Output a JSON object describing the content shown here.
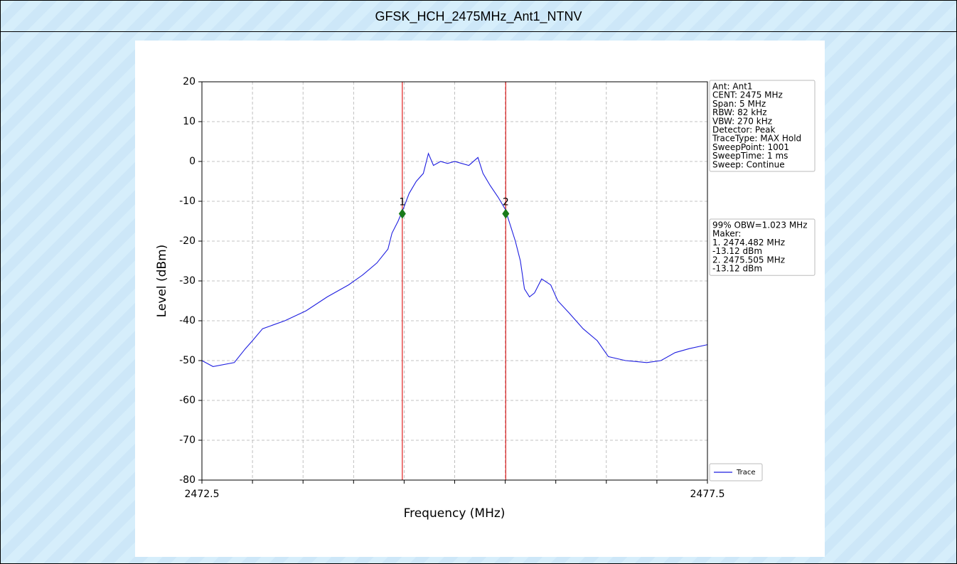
{
  "chart_data": {
    "type": "line",
    "title": "GFSK_HCH_2475MHz_Ant1_NTNV",
    "xlabel": "Frequency (MHz)",
    "ylabel": "Level (dBm)",
    "xlim": [
      2472.5,
      2477.5
    ],
    "ylim": [
      -80,
      20
    ],
    "xticks": [
      2472.5,
      2477.5
    ],
    "xminor_ticks": [
      2473,
      2473.5,
      2474,
      2474.5,
      2475,
      2475.5,
      2476,
      2476.5,
      2477
    ],
    "yticks": [
      -80,
      -70,
      -60,
      -50,
      -40,
      -30,
      -20,
      -10,
      0,
      10,
      20
    ],
    "grid": true,
    "series": [
      {
        "name": "Trace",
        "color": "#1f1fe0",
        "x": [
          2472.5,
          2472.61,
          2472.82,
          2472.93,
          2473.0,
          2473.1,
          2473.32,
          2473.53,
          2473.74,
          2473.95,
          2474.09,
          2474.23,
          2474.34,
          2474.38,
          2474.44,
          2474.49,
          2474.55,
          2474.62,
          2474.69,
          2474.74,
          2474.79,
          2474.86,
          2474.93,
          2475.0,
          2475.07,
          2475.14,
          2475.23,
          2475.28,
          2475.35,
          2475.43,
          2475.5,
          2475.55,
          2475.6,
          2475.65,
          2475.69,
          2475.74,
          2475.79,
          2475.86,
          2475.95,
          2476.02,
          2476.13,
          2476.27,
          2476.41,
          2476.52,
          2476.69,
          2476.9,
          2477.04,
          2477.18,
          2477.32,
          2477.5
        ],
        "values": [
          -50,
          -51.5,
          -50.5,
          -47,
          -45,
          -42,
          -40,
          -37.5,
          -34,
          -31,
          -28.5,
          -25.5,
          -22,
          -18,
          -15,
          -12,
          -8,
          -5,
          -3,
          2,
          -1,
          0,
          -0.5,
          0,
          -0.5,
          -1,
          1,
          -3,
          -6,
          -9,
          -12,
          -16,
          -20,
          -25,
          -32,
          -34,
          -33,
          -29.5,
          -31,
          -35,
          -38,
          -42,
          -45,
          -49,
          -50,
          -50.5,
          -50,
          -48,
          -47,
          -46
        ]
      }
    ],
    "markers": [
      {
        "label": "1",
        "x": 2474.482,
        "value": -13.12,
        "color": "#1a7a1a"
      },
      {
        "label": "2",
        "x": 2475.505,
        "value": -13.12,
        "color": "#1a7a1a"
      }
    ],
    "marker_line_color": "#e02020",
    "info": [
      "Ant: Ant1",
      "CENT: 2475 MHz",
      "Span: 5 MHz",
      "RBW: 82 kHz",
      "VBW: 270 kHz",
      "Detector: Peak",
      "TraceType: MAX Hold",
      "SweepPoint: 1001",
      "SweepTime: 1 ms",
      "Sweep: Continue"
    ],
    "annotation": [
      "99% OBW=1.023 MHz",
      "Maker:",
      "1. 2474.482 MHz",
      "   -13.12 dBm",
      "2. 2475.505 MHz",
      "   -13.12 dBm"
    ]
  }
}
